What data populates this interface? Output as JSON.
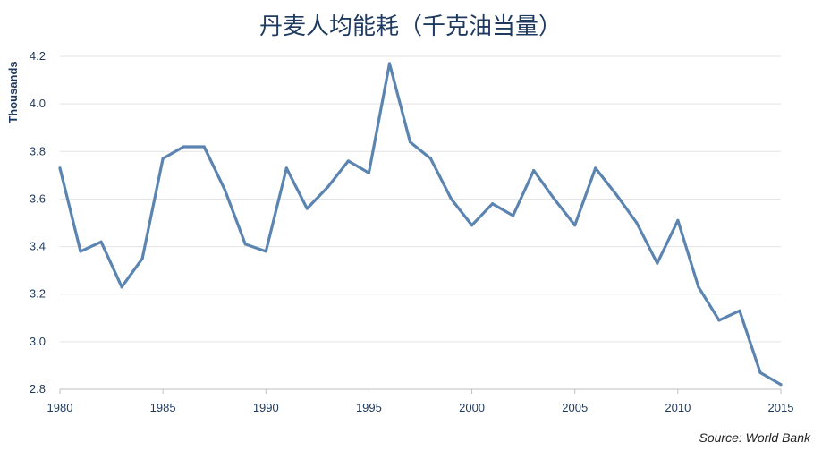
{
  "chart_data": {
    "type": "line",
    "title": "丹麦人均能耗（千克油当量）",
    "ylabel": "Thousands",
    "xlabel": "",
    "source": "Source: World Bank",
    "xlim": [
      1980,
      2015
    ],
    "ylim": [
      2.8,
      4.2
    ],
    "x_ticks": [
      1980,
      1985,
      1990,
      1995,
      2000,
      2005,
      2010,
      2015
    ],
    "y_ticks": [
      "2.8",
      "3.0",
      "3.2",
      "3.4",
      "3.6",
      "3.8",
      "4.0",
      "4.2"
    ],
    "grid": true,
    "line_color": "#5b84b1",
    "series": [
      {
        "x": [
          1980,
          1981,
          1982,
          1983,
          1984,
          1985,
          1986,
          1987,
          1988,
          1989,
          1990,
          1991,
          1992,
          1993,
          1994,
          1995,
          1996,
          1997,
          1998,
          1999,
          2000,
          2001,
          2002,
          2003,
          2004,
          2005,
          2006,
          2007,
          2008,
          2009,
          2010,
          2011,
          2012,
          2013,
          2014,
          2015
        ],
        "values": [
          3.73,
          3.38,
          3.42,
          3.23,
          3.35,
          3.77,
          3.82,
          3.82,
          3.64,
          3.41,
          3.38,
          3.73,
          3.56,
          3.65,
          3.76,
          3.71,
          4.17,
          3.84,
          3.77,
          3.6,
          3.49,
          3.58,
          3.53,
          3.72,
          3.6,
          3.49,
          3.73,
          3.62,
          3.5,
          3.33,
          3.51,
          3.23,
          3.09,
          3.13,
          2.87,
          2.82
        ]
      }
    ]
  }
}
